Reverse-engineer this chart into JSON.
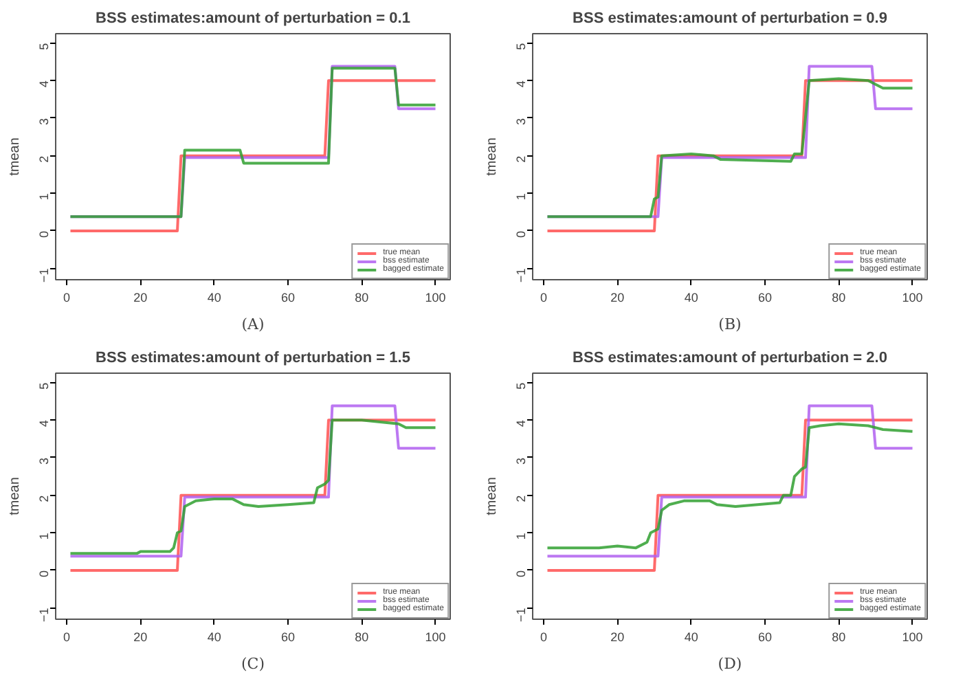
{
  "chart_data": [
    {
      "type": "line",
      "title": "BSS estimates:amount of perturbation = 0.1",
      "ylabel": "tmean",
      "annotations": [
        "(A)"
      ],
      "xlim": [
        -3,
        104
      ],
      "ylim": [
        -1.3,
        5.25
      ],
      "xticks": [
        0,
        20,
        40,
        60,
        80,
        100
      ],
      "yticks": [
        -1,
        0,
        1,
        2,
        3,
        4,
        5
      ],
      "grid": false,
      "legend": "bottom right",
      "series": [
        {
          "name": "true mean",
          "color": "#ff5050",
          "x": [
            1,
            30,
            31,
            70,
            71,
            100
          ],
          "values": [
            0,
            0,
            2,
            2,
            4,
            4
          ]
        },
        {
          "name": "bss estimate",
          "color": "#b060f0",
          "x": [
            1,
            31,
            32,
            71,
            72,
            89,
            90,
            100
          ],
          "values": [
            0.38,
            0.38,
            1.95,
            1.95,
            4.38,
            4.38,
            3.25,
            3.25
          ]
        },
        {
          "name": "bagged estimate",
          "color": "#30a030",
          "x": [
            1,
            31,
            32,
            47,
            48,
            71,
            72,
            89,
            90,
            100
          ],
          "values": [
            0.38,
            0.38,
            2.15,
            2.15,
            1.8,
            1.8,
            4.33,
            4.33,
            3.35,
            3.35
          ]
        }
      ]
    },
    {
      "type": "line",
      "title": "BSS estimates:amount of perturbation = 0.9",
      "ylabel": "tmean",
      "annotations": [
        "(B)"
      ],
      "xlim": [
        -3,
        104
      ],
      "ylim": [
        -1.3,
        5.25
      ],
      "xticks": [
        0,
        20,
        40,
        60,
        80,
        100
      ],
      "yticks": [
        -1,
        0,
        1,
        2,
        3,
        4,
        5
      ],
      "grid": false,
      "legend": "bottom right",
      "series": [
        {
          "name": "true mean",
          "color": "#ff5050",
          "x": [
            1,
            30,
            31,
            70,
            71,
            100
          ],
          "values": [
            0,
            0,
            2,
            2,
            4,
            4
          ]
        },
        {
          "name": "bss estimate",
          "color": "#b060f0",
          "x": [
            1,
            31,
            32,
            71,
            72,
            89,
            90,
            100
          ],
          "values": [
            0.38,
            0.38,
            1.95,
            1.95,
            4.38,
            4.38,
            3.25,
            3.25
          ]
        },
        {
          "name": "bagged estimate",
          "color": "#30a030",
          "x": [
            1,
            29,
            30,
            31,
            32,
            40,
            46,
            48,
            67,
            68,
            70,
            72,
            80,
            88,
            90,
            92,
            100
          ],
          "values": [
            0.38,
            0.38,
            0.85,
            0.9,
            2.0,
            2.05,
            2.0,
            1.9,
            1.85,
            2.05,
            2.05,
            4.0,
            4.05,
            4.0,
            3.9,
            3.8,
            3.8
          ]
        }
      ]
    },
    {
      "type": "line",
      "title": "BSS estimates:amount of perturbation = 1.5",
      "ylabel": "tmean",
      "annotations": [
        "(C)"
      ],
      "xlim": [
        -3,
        104
      ],
      "ylim": [
        -1.3,
        5.25
      ],
      "xticks": [
        0,
        20,
        40,
        60,
        80,
        100
      ],
      "yticks": [
        -1,
        0,
        1,
        2,
        3,
        4,
        5
      ],
      "grid": false,
      "legend": "bottom right",
      "series": [
        {
          "name": "true mean",
          "color": "#ff5050",
          "x": [
            1,
            30,
            31,
            70,
            71,
            100
          ],
          "values": [
            0,
            0,
            2,
            2,
            4,
            4
          ]
        },
        {
          "name": "bss estimate",
          "color": "#b060f0",
          "x": [
            1,
            31,
            32,
            71,
            72,
            89,
            90,
            100
          ],
          "values": [
            0.38,
            0.38,
            1.95,
            1.95,
            4.38,
            4.38,
            3.25,
            3.25
          ]
        },
        {
          "name": "bagged estimate",
          "color": "#30a030",
          "x": [
            1,
            19,
            20,
            28,
            29,
            30,
            31,
            32,
            35,
            40,
            45,
            48,
            52,
            60,
            67,
            68,
            70,
            71,
            72,
            80,
            85,
            90,
            92,
            100
          ],
          "values": [
            0.45,
            0.45,
            0.5,
            0.5,
            0.6,
            1.0,
            1.05,
            1.7,
            1.85,
            1.9,
            1.9,
            1.75,
            1.7,
            1.75,
            1.8,
            2.2,
            2.3,
            2.4,
            4.0,
            4.0,
            3.95,
            3.9,
            3.8,
            3.8
          ]
        }
      ]
    },
    {
      "type": "line",
      "title": "BSS estimates:amount of perturbation = 2.0",
      "ylabel": "tmean",
      "annotations": [
        "(D)"
      ],
      "xlim": [
        -3,
        104
      ],
      "ylim": [
        -1.3,
        5.25
      ],
      "xticks": [
        0,
        20,
        40,
        60,
        80,
        100
      ],
      "yticks": [
        -1,
        0,
        1,
        2,
        3,
        4,
        5
      ],
      "grid": false,
      "legend": "bottom right",
      "series": [
        {
          "name": "true mean",
          "color": "#ff5050",
          "x": [
            1,
            30,
            31,
            70,
            71,
            100
          ],
          "values": [
            0,
            0,
            2,
            2,
            4,
            4
          ]
        },
        {
          "name": "bss estimate",
          "color": "#b060f0",
          "x": [
            1,
            31,
            32,
            71,
            72,
            89,
            90,
            100
          ],
          "values": [
            0.38,
            0.38,
            1.95,
            1.95,
            4.38,
            4.38,
            3.25,
            3.25
          ]
        },
        {
          "name": "bagged estimate",
          "color": "#30a030",
          "x": [
            1,
            15,
            20,
            25,
            28,
            29,
            31,
            32,
            34,
            38,
            45,
            47,
            52,
            58,
            64,
            65,
            67,
            68,
            70,
            71,
            72,
            75,
            80,
            88,
            92,
            100
          ],
          "values": [
            0.6,
            0.6,
            0.65,
            0.6,
            0.75,
            1.0,
            1.1,
            1.6,
            1.75,
            1.85,
            1.85,
            1.75,
            1.7,
            1.75,
            1.8,
            2.0,
            2.0,
            2.5,
            2.7,
            2.75,
            3.8,
            3.85,
            3.9,
            3.85,
            3.75,
            3.7
          ]
        }
      ]
    }
  ]
}
